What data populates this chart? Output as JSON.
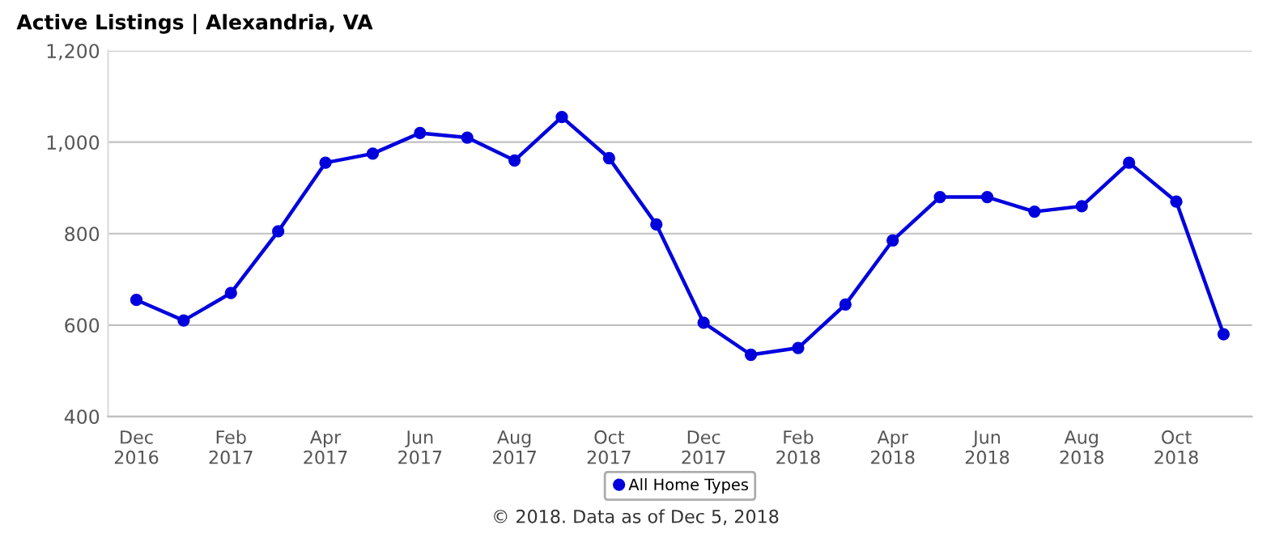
{
  "chart_data": {
    "type": "line",
    "title": "Active Listings | Alexandria, VA",
    "categories": [
      "Dec\n2016",
      null,
      "Feb\n2017",
      null,
      "Apr\n2017",
      null,
      "Jun\n2017",
      null,
      "Aug\n2017",
      null,
      "Oct\n2017",
      null,
      "Dec\n2017",
      null,
      "Feb\n2018",
      null,
      "Apr\n2018",
      null,
      "Jun\n2018",
      null,
      "Aug\n2018",
      null,
      "Oct\n2018",
      null
    ],
    "series": [
      {
        "name": "All Home Types",
        "color": "#0000dd",
        "values": [
          655,
          610,
          670,
          805,
          955,
          975,
          1020,
          1010,
          960,
          1055,
          965,
          820,
          605,
          535,
          550,
          645,
          785,
          880,
          880,
          848,
          860,
          955,
          870,
          580
        ]
      }
    ],
    "ylim": [
      400,
      1200
    ],
    "yticks": [
      400,
      600,
      800,
      {
        "value": 1000,
        "label": "1,000"
      },
      {
        "value": 1200,
        "label": "1,200"
      }
    ],
    "grid": "y",
    "legend": "bottom",
    "marker": "circle",
    "line_style": "solid",
    "annotations": [
      "© 2018. Data as of Dec 5, 2018"
    ]
  }
}
